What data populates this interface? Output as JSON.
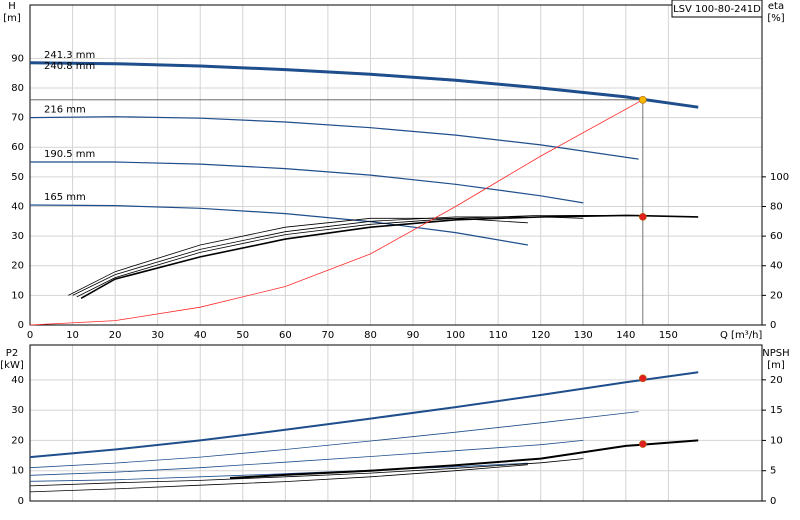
{
  "chart_data": [
    {
      "type": "line",
      "annotation": "LSV 100-80-241D",
      "ylabel": [
        "H",
        "[m]"
      ],
      "y2label": [
        "eta",
        "[%]"
      ],
      "xlabel": "Q [m³/h]",
      "xlim": [
        0,
        172
      ],
      "xticks": [
        0,
        10,
        20,
        30,
        40,
        50,
        60,
        70,
        80,
        90,
        100,
        110,
        120,
        130,
        140,
        150
      ],
      "ylim": [
        0,
        108
      ],
      "yticks": [
        0,
        10,
        20,
        30,
        40,
        50,
        60,
        70,
        80,
        90
      ],
      "y2lim": [
        0,
        216
      ],
      "y2ticks": [
        0,
        20,
        40,
        60,
        80,
        100
      ],
      "grid": true,
      "x_tick_labels": true,
      "guide_lines": true,
      "series": [
        {
          "name": "241.3 mm",
          "color": "#1f4e8c",
          "line_width": 3,
          "x": [
            0,
            20,
            40,
            60,
            80,
            100,
            120,
            140,
            157
          ],
          "values": [
            88.5,
            88.2,
            87.4,
            86.2,
            84.6,
            82.6,
            80,
            77,
            73.5
          ]
        },
        {
          "name": "240.8 mm",
          "color": "#1f4e8c",
          "line_width": 1.2,
          "x": [
            0,
            20,
            40,
            60,
            80,
            100,
            120,
            140,
            157
          ],
          "values": [
            88.3,
            88,
            87.2,
            86,
            84.4,
            82.4,
            79.8,
            76.8,
            73.3
          ]
        },
        {
          "name": "216 mm",
          "color": "#1f4e8c",
          "line_width": 1.2,
          "x": [
            0,
            20,
            40,
            60,
            80,
            100,
            120,
            143
          ],
          "values": [
            70,
            70.3,
            69.8,
            68.5,
            66.6,
            64.1,
            60.8,
            56
          ]
        },
        {
          "name": "190.5 mm",
          "color": "#1f4e8c",
          "line_width": 1.2,
          "x": [
            0,
            20,
            40,
            60,
            80,
            100,
            120,
            130
          ],
          "values": [
            55,
            55,
            54.3,
            52.8,
            50.6,
            47.5,
            43.6,
            41.2
          ]
        },
        {
          "name": "165 mm",
          "color": "#1f4e8c",
          "line_width": 1.2,
          "x": [
            0,
            20,
            40,
            60,
            80,
            100,
            117
          ],
          "values": [
            40.5,
            40.3,
            39.4,
            37.6,
            34.9,
            31.2,
            27
          ]
        },
        {
          "color": "#000000",
          "line_width": 1.6,
          "axis": "y2",
          "x": [
            12,
            20,
            40,
            60,
            80,
            100,
            120,
            140,
            157
          ],
          "values": [
            18,
            31,
            46,
            58,
            66,
            71,
            73,
            74,
            73
          ]
        },
        {
          "color": "#000000",
          "line_width": 0.8,
          "axis": "y2",
          "x": [
            11,
            20,
            40,
            60,
            80,
            100,
            120,
            143
          ],
          "values": [
            19,
            32,
            49,
            61,
            68,
            72,
            74,
            74
          ]
        },
        {
          "color": "#000000",
          "line_width": 0.8,
          "axis": "y2",
          "x": [
            10,
            20,
            40,
            60,
            80,
            100,
            120,
            130
          ],
          "values": [
            20,
            34,
            51,
            63,
            70,
            73,
            73,
            72
          ]
        },
        {
          "color": "#000000",
          "line_width": 0.8,
          "axis": "y2",
          "x": [
            9,
            20,
            40,
            60,
            80,
            100,
            117
          ],
          "values": [
            20,
            36,
            54,
            66,
            72,
            72,
            69
          ]
        },
        {
          "color": "#ff2a2a",
          "line_width": 0.8,
          "x": [
            0,
            20,
            40,
            60,
            80,
            100,
            120,
            144
          ],
          "values": [
            0,
            1.5,
            6,
            13,
            24,
            40,
            57,
            76
          ]
        },
        {
          "color": "#f5b800",
          "marker": "circle",
          "x": [
            144
          ],
          "values": [
            76
          ]
        },
        {
          "color": "#e02020",
          "marker": "circle",
          "axis": "y2",
          "x": [
            144
          ],
          "values": [
            73
          ]
        }
      ]
    },
    {
      "type": "line",
      "ylabel": [
        "P2",
        "[kW]"
      ],
      "y2label": [
        "NPSH",
        "[m]"
      ],
      "xlim": [
        0,
        172
      ],
      "xticks": [
        0,
        10,
        20,
        30,
        40,
        50,
        60,
        70,
        80,
        90,
        100,
        110,
        120,
        130,
        140,
        150
      ],
      "ylim": [
        0,
        51.5
      ],
      "yticks": [
        0,
        10,
        20,
        30,
        40
      ],
      "y2lim": [
        0,
        25.75
      ],
      "y2ticks": [
        0,
        5,
        10,
        15,
        20
      ],
      "grid": true,
      "x_tick_labels": false,
      "series": [
        {
          "color": "#1f4e8c",
          "line_width": 2,
          "x": [
            0,
            20,
            40,
            60,
            80,
            100,
            120,
            140,
            157
          ],
          "values": [
            14.5,
            17,
            20,
            23.5,
            27.2,
            31,
            35,
            39.2,
            42.5
          ]
        },
        {
          "color": "#1f4e8c",
          "line_width": 0.8,
          "x": [
            0,
            20,
            40,
            60,
            80,
            100,
            120,
            143
          ],
          "values": [
            11,
            12.5,
            14.5,
            17,
            19.8,
            22.7,
            25.8,
            29.5
          ]
        },
        {
          "color": "#1f4e8c",
          "line_width": 0.8,
          "x": [
            0,
            20,
            40,
            60,
            80,
            100,
            120,
            130
          ],
          "values": [
            8.5,
            9.5,
            11,
            12.8,
            14.7,
            16.6,
            18.6,
            20
          ]
        },
        {
          "color": "#1f4e8c",
          "line_width": 0.8,
          "x": [
            0,
            20,
            40,
            60,
            80,
            100,
            117
          ],
          "values": [
            6.5,
            7,
            8,
            9,
            10.2,
            11.3,
            12.5
          ]
        },
        {
          "color": "#000000",
          "line_width": 2,
          "axis": "y2",
          "x": [
            47,
            60,
            80,
            100,
            120,
            140,
            157
          ],
          "values": [
            3.8,
            4.3,
            5,
            5.9,
            7,
            9.1,
            10
          ]
        },
        {
          "color": "#000000",
          "line_width": 0.8,
          "axis": "y2",
          "x": [
            0,
            20,
            40,
            60,
            80,
            100,
            120,
            130
          ],
          "values": [
            2.5,
            3,
            3.4,
            4,
            4.6,
            5.4,
            6.3,
            7
          ]
        },
        {
          "color": "#000000",
          "line_width": 0.8,
          "axis": "y2",
          "x": [
            0,
            20,
            40,
            60,
            80,
            100,
            117
          ],
          "values": [
            1.5,
            2,
            2.6,
            3.2,
            4,
            5,
            6
          ]
        },
        {
          "color": "#e02020",
          "marker": "circle",
          "x": [
            144
          ],
          "values": [
            40.5
          ]
        },
        {
          "color": "#e02020",
          "marker": "circle",
          "axis": "y2",
          "x": [
            144
          ],
          "values": [
            9.4
          ]
        }
      ]
    }
  ]
}
